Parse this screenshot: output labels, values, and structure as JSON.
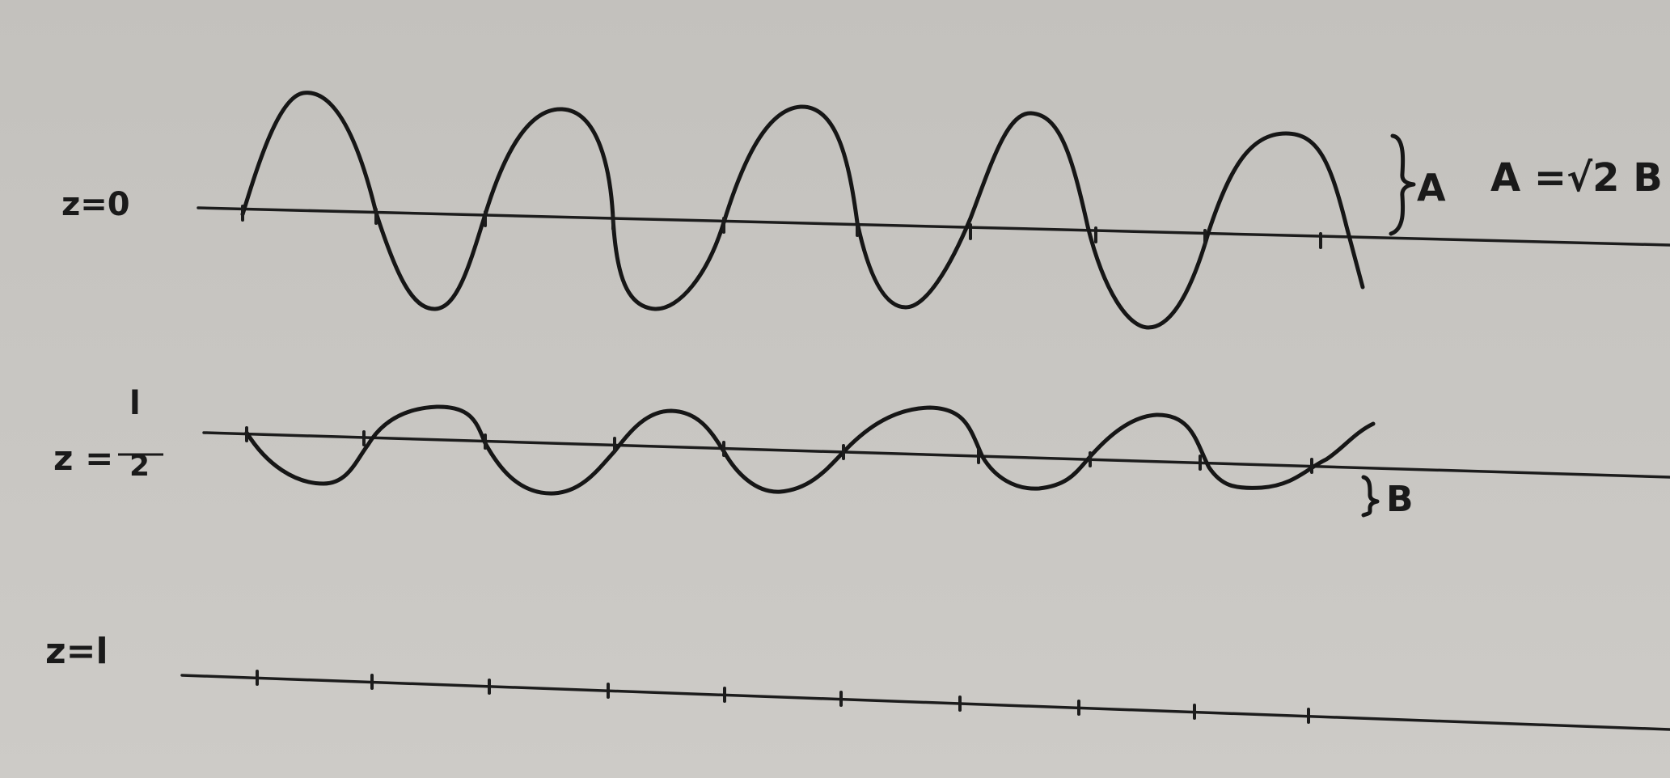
{
  "rows": [
    {
      "label": "z=0",
      "amplitude_marker": "A",
      "note": "A =√2 B"
    },
    {
      "label_top": "l",
      "label_left": "z =",
      "label_bottom": "2",
      "amplitude_marker": "B"
    },
    {
      "label": "z=l"
    }
  ],
  "colors": {
    "paper": "#c6c4c0",
    "ink": "#161616"
  }
}
